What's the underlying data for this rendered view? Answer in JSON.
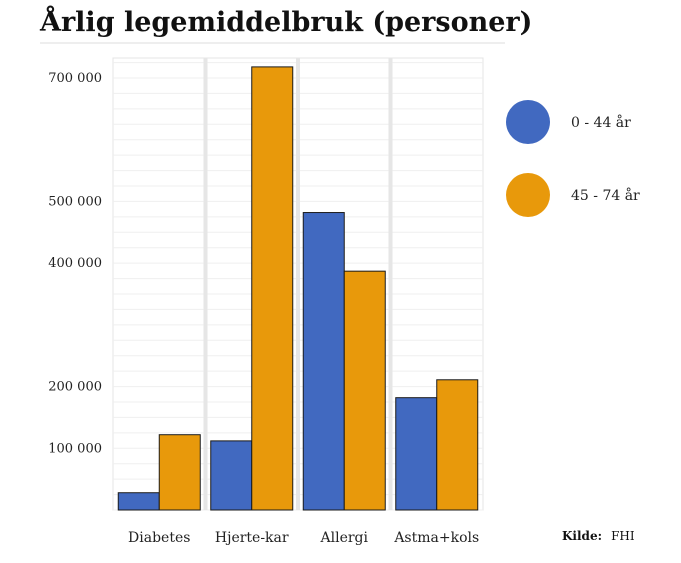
{
  "chart_data": {
    "type": "bar",
    "title": "Årlig legemiddelbruk (personer)",
    "xlabel": "",
    "ylabel": "",
    "categories": [
      "Diabetes",
      "Hjerte-kar",
      "Allergi",
      "Astma+kols"
    ],
    "series": [
      {
        "name": "0 - 44 år",
        "color": "#4169c0",
        "values": [
          28000,
          112000,
          482000,
          182000
        ]
      },
      {
        "name": "45 - 74 år",
        "color": "#e8990b",
        "values": [
          122000,
          718000,
          387000,
          211000
        ]
      }
    ],
    "ylim": [
      0,
      750000
    ],
    "yticks": [
      {
        "value": 100000,
        "label": "100 000"
      },
      {
        "value": 200000,
        "label": "200 000"
      },
      {
        "value": 400000,
        "label": "400 000"
      },
      {
        "value": 500000,
        "label": "500 000"
      },
      {
        "value": 700000,
        "label": "700 000"
      }
    ],
    "grid": true,
    "legend_position": "right",
    "source": {
      "label": "Kilde:",
      "value": "FHI"
    }
  }
}
